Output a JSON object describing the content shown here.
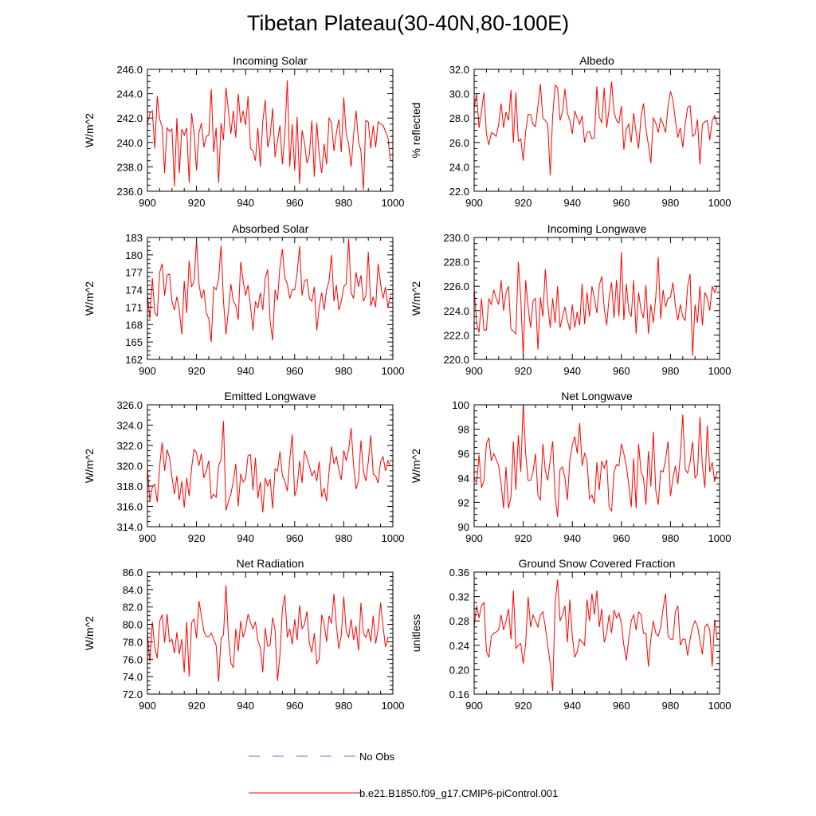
{
  "figure": {
    "title": "Tibetan Plateau(30-40N,80-100E)",
    "legend": {
      "obs_label": "No Obs",
      "obs_color": "#6a6ac8",
      "model_label": "b.e21.B1850.f09_g17.CMIP6-piControl.001",
      "model_color": "#ff0000"
    }
  },
  "chart_data": [
    {
      "type": "line",
      "title": "Incoming Solar",
      "ylabel": "W/m^2",
      "xlim": [
        900,
        1000
      ],
      "xticks": [
        900,
        920,
        940,
        960,
        980,
        1000
      ],
      "ylim": [
        236,
        246
      ],
      "yticks": [
        236,
        238,
        240,
        242,
        244,
        246
      ],
      "ydec": 1,
      "x_start": 900,
      "series_name": "b.e21.B1850.f09_g17.CMIP6-piControl.001",
      "values": [
        241.5,
        242.4,
        242.6,
        239.5,
        243.8,
        241.9,
        241.3,
        237.5,
        241.2,
        240.9,
        241.1,
        236.4,
        242.0,
        237.5,
        241.1,
        240.6,
        241.2,
        236.7,
        242.4,
        240.8,
        237.7,
        240.8,
        241.6,
        239.6,
        240.5,
        240.6,
        244.4,
        239.2,
        241.2,
        236.7,
        241.6,
        240.2,
        244.5,
        242.6,
        240.7,
        242.6,
        240.4,
        244.0,
        241.6,
        242.6,
        241.4,
        243.8,
        239.5,
        239.3,
        238.5,
        241.2,
        238.0,
        241.7,
        243.5,
        239.6,
        240.5,
        242.8,
        238.8,
        240.1,
        241.4,
        238.2,
        240.7,
        245.1,
        238.0,
        241.5,
        237.7,
        242.1,
        236.6,
        241.0,
        240.0,
        238.3,
        239.0,
        241.8,
        237.2,
        241.6,
        239.0,
        237.5,
        239.9,
        238.2,
        242.0,
        241.6,
        239.3,
        240.8,
        241.9,
        239.2,
        243.7,
        240.7,
        239.9,
        238.0,
        240.6,
        242.6,
        240.1,
        239.3,
        236.1,
        241.8,
        241.7,
        239.5,
        241.4,
        239.6,
        241.7,
        241.5,
        241.4,
        240.9,
        240.4,
        238.5
      ]
    },
    {
      "type": "line",
      "title": "Albedo",
      "ylabel": "% reflected",
      "xlim": [
        900,
        1000
      ],
      "xticks": [
        900,
        920,
        940,
        960,
        980,
        1000
      ],
      "ylim": [
        22,
        32
      ],
      "yticks": [
        22,
        24,
        26,
        28,
        30,
        32
      ],
      "ydec": 1,
      "x_start": 900,
      "series_name": "b.e21.B1850.f09_g17.CMIP6-piControl.001",
      "values": [
        28.8,
        30.0,
        27.2,
        28.6,
        30.1,
        26.7,
        25.8,
        26.8,
        26.7,
        26.5,
        27.5,
        29.2,
        27.2,
        28.5,
        27.8,
        30.3,
        26.0,
        30.1,
        26.1,
        26.3,
        24.5,
        26.9,
        28.3,
        28.3,
        27.5,
        27.3,
        29.0,
        30.8,
        28.0,
        27.8,
        27.5,
        23.3,
        28.2,
        30.7,
        30.5,
        27.8,
        28.5,
        30.4,
        28.4,
        27.8,
        26.7,
        28.6,
        28.0,
        27.5,
        28.2,
        26.0,
        26.8,
        26.9,
        26.3,
        26.4,
        30.6,
        28.1,
        27.6,
        30.5,
        27.2,
        28.8,
        31.0,
        28.5,
        27.8,
        27.6,
        29.0,
        25.4,
        27.1,
        27.5,
        26.0,
        28.4,
        26.8,
        25.5,
        28.1,
        29.2,
        27.1,
        25.8,
        24.3,
        28.0,
        27.6,
        26.8,
        28.0,
        27.5,
        26.8,
        29.0,
        30.2,
        29.5,
        27.8,
        26.4,
        27.2,
        25.6,
        27.5,
        28.9,
        29.0,
        26.5,
        26.7,
        27.9,
        24.2,
        27.5,
        27.7,
        27.8,
        26.2,
        27.8,
        28.2,
        27.5
      ]
    },
    {
      "type": "line",
      "title": "Absorbed Solar",
      "ylabel": "W/m^2",
      "xlim": [
        900,
        1000
      ],
      "xticks": [
        900,
        920,
        940,
        960,
        980,
        1000
      ],
      "ylim": [
        162,
        183
      ],
      "yticks": [
        162,
        165,
        168,
        171,
        174,
        177,
        180,
        183
      ],
      "ydec": 0,
      "x_start": 900,
      "series_name": "b.e21.B1850.f09_g17.CMIP6-piControl.001",
      "values": [
        173.2,
        169.0,
        176.0,
        170.0,
        169.5,
        177.0,
        178.5,
        173.0,
        176.5,
        176.7,
        172.0,
        170.5,
        172.8,
        170.5,
        166.3,
        175.5,
        170.0,
        179.0,
        174.5,
        175.5,
        182.5,
        175.0,
        172.5,
        174.0,
        170.0,
        169.0,
        165.0,
        174.5,
        174.0,
        175.8,
        181.6,
        172.0,
        166.3,
        170.5,
        175.0,
        172.0,
        171.3,
        168.8,
        178.8,
        175.5,
        173.0,
        174.8,
        171.2,
        167.0,
        172.0,
        170.8,
        173.5,
        170.5,
        176.0,
        177.5,
        168.5,
        165.3,
        174.0,
        172.2,
        178.0,
        181.0,
        176.0,
        175.0,
        172.5,
        174.0,
        174.0,
        176.8,
        181.5,
        173.0,
        175.5,
        175.8,
        172.5,
        172.0,
        174.5,
        167.0,
        171.0,
        173.5,
        170.5,
        174.0,
        175.5,
        180.0,
        172.0,
        174.8,
        170.5,
        172.0,
        174.5,
        175.0,
        182.8,
        173.5,
        172.5,
        177.0,
        174.5,
        176.5,
        172.0,
        173.0,
        180.5,
        171.2,
        172.8,
        171.0,
        178.5,
        175.0,
        172.5,
        174.5,
        171.0,
        173.0
      ]
    },
    {
      "type": "line",
      "title": "Incoming Longwave",
      "ylabel": "W/m^2",
      "xlim": [
        900,
        1000
      ],
      "xticks": [
        900,
        920,
        940,
        960,
        980,
        1000
      ],
      "ylim": [
        220,
        230
      ],
      "yticks": [
        220,
        222,
        224,
        226,
        228,
        230
      ],
      "ydec": 1,
      "x_start": 900,
      "series_name": "b.e21.B1850.f09_g17.CMIP6-piControl.001",
      "values": [
        225.8,
        223.0,
        222.2,
        225.0,
        222.4,
        222.4,
        225.0,
        224.5,
        225.7,
        225.0,
        224.5,
        226.5,
        224.0,
        225.5,
        226.0,
        222.5,
        222.3,
        222.1,
        228.0,
        225.0,
        220.2,
        226.5,
        224.3,
        222.6,
        224.8,
        225.0,
        220.8,
        225.1,
        223.5,
        227.4,
        224.5,
        222.6,
        225.0,
        223.0,
        226.0,
        222.6,
        223.5,
        224.3,
        223.2,
        222.4,
        224.5,
        222.6,
        223.9,
        222.8,
        226.2,
        222.9,
        225.5,
        223.5,
        226.0,
        225.0,
        223.8,
        226.1,
        226.8,
        224.2,
        222.8,
        225.1,
        226.3,
        223.4,
        226.5,
        223.5,
        228.8,
        223.2,
        226.2,
        224.0,
        223.5,
        226.5,
        222.1,
        225.5,
        224.0,
        223.4,
        226.1,
        222.1,
        224.5,
        223.0,
        225.1,
        228.4,
        223.3,
        225.7,
        224.3,
        225.0,
        225.1,
        226.3,
        224.4,
        223.2,
        224.5,
        223.5,
        223.2,
        226.0,
        227.0,
        220.3,
        224.5,
        223.0,
        226.0,
        222.8,
        225.5,
        225.0,
        224.0,
        226.0,
        225.5,
        226.0
      ]
    },
    {
      "type": "line",
      "title": "Emitted Longwave",
      "ylabel": "W/m^2",
      "xlim": [
        900,
        1000
      ],
      "xticks": [
        900,
        920,
        940,
        960,
        980,
        1000
      ],
      "ylim": [
        314,
        326
      ],
      "yticks": [
        314,
        316,
        318,
        320,
        322,
        324,
        326
      ],
      "ydec": 1,
      "x_start": 900,
      "series_name": "b.e21.B1850.f09_g17.CMIP6-piControl.001",
      "values": [
        319.8,
        316.5,
        317.9,
        318.2,
        316.4,
        320.0,
        322.3,
        319.5,
        321.6,
        320.8,
        318.9,
        317.2,
        319.0,
        316.6,
        318.5,
        315.9,
        318.8,
        317.0,
        319.8,
        321.6,
        321.3,
        320.0,
        321.2,
        318.8,
        319.5,
        320.5,
        316.8,
        317.2,
        316.9,
        320.0,
        320.6,
        324.4,
        315.6,
        316.5,
        317.2,
        318.5,
        320.2,
        316.0,
        319.2,
        318.4,
        318.7,
        321.0,
        321.1,
        317.6,
        320.8,
        316.8,
        318.4,
        315.4,
        318.8,
        318.0,
        318.7,
        315.8,
        319.7,
        319.5,
        321.4,
        319.0,
        318.5,
        317.5,
        320.6,
        323.1,
        317.0,
        317.9,
        320.5,
        318.3,
        321.5,
        320.8,
        320.0,
        319.0,
        319.5,
        318.5,
        320.4,
        316.9,
        317.8,
        316.5,
        319.4,
        321.9,
        320.2,
        320.9,
        319.6,
        318.6,
        321.5,
        320.5,
        321.6,
        323.7,
        320.0,
        317.7,
        318.5,
        322.5,
        319.5,
        318.5,
        320.4,
        323.0,
        319.2,
        319.0,
        318.3,
        320.4,
        320.9,
        319.5,
        320.5,
        320.0
      ]
    },
    {
      "type": "line",
      "title": "Net Longwave",
      "ylabel": "W/m^2",
      "xlim": [
        900,
        1000
      ],
      "xticks": [
        900,
        920,
        940,
        960,
        980,
        1000
      ],
      "ylim": [
        90,
        100
      ],
      "yticks": [
        90,
        92,
        94,
        96,
        98,
        100
      ],
      "ydec": 0,
      "x_start": 900,
      "series_name": "b.e21.B1850.f09_g17.CMIP6-piControl.001",
      "values": [
        94.0,
        93.6,
        95.9,
        93.2,
        93.8,
        96.8,
        97.3,
        95.4,
        96.0,
        95.5,
        95.0,
        93.5,
        91.5,
        94.9,
        91.5,
        92.5,
        97.0,
        93.0,
        97.5,
        94.5,
        100.0,
        96.0,
        93.8,
        93.8,
        94.5,
        96.0,
        92.6,
        92.2,
        96.8,
        94.6,
        93.8,
        95.5,
        97.0,
        92.5,
        90.8,
        94.7,
        94.9,
        94.0,
        92.2,
        95.5,
        96.7,
        97.4,
        96.0,
        98.5,
        95.0,
        96.0,
        95.4,
        92.3,
        92.6,
        91.9,
        95.3,
        93.0,
        95.4,
        94.8,
        95.5,
        91.6,
        91.3,
        94.5,
        95.1,
        95.0,
        96.8,
        96.0,
        95.0,
        93.5,
        91.6,
        95.6,
        91.5,
        96.8,
        94.5,
        94.0,
        91.8,
        96.2,
        93.3,
        97.8,
        93.0,
        91.8,
        94.6,
        94.5,
        95.5,
        97.0,
        92.5,
        94.0,
        95.0,
        93.5,
        95.8,
        99.2,
        94.7,
        94.4,
        95.3,
        97.0,
        94.0,
        94.3,
        99.0,
        95.0,
        93.2,
        98.3,
        94.5,
        95.3,
        93.7,
        94.5
      ]
    },
    {
      "type": "line",
      "title": "Net Radiation",
      "ylabel": "W/m^2",
      "xlim": [
        900,
        1000
      ],
      "xticks": [
        900,
        920,
        940,
        960,
        980,
        1000
      ],
      "ylim": [
        72,
        86
      ],
      "yticks": [
        72,
        74,
        76,
        78,
        80,
        82,
        84,
        86
      ],
      "ydec": 1,
      "x_start": 900,
      "series_name": "b.e21.B1850.f09_g17.CMIP6-piControl.001",
      "values": [
        79.0,
        75.7,
        80.3,
        77.4,
        76.1,
        80.4,
        81.1,
        77.9,
        81.2,
        78.0,
        78.3,
        76.7,
        79.1,
        76.6,
        78.3,
        74.5,
        80.3,
        74.0,
        80.2,
        80.6,
        78.4,
        82.7,
        81.0,
        79.2,
        78.6,
        78.6,
        79.0,
        78.3,
        77.6,
        73.4,
        78.4,
        78.8,
        84.5,
        78.5,
        75.6,
        75.0,
        79.5,
        76.9,
        80.4,
        78.5,
        79.5,
        81.2,
        80.2,
        79.5,
        80.3,
        78.2,
        77.3,
        74.5,
        79.6,
        77.5,
        77.6,
        80.8,
        79.4,
        73.5,
        76.5,
        81.8,
        83.4,
        78.5,
        79.5,
        77.7,
        80.6,
        78.2,
        82.2,
        79.5,
        80.0,
        81.5,
        77.8,
        76.8,
        79.0,
        75.5,
        76.0,
        81.1,
        80.1,
        78.0,
        81.0,
        80.1,
        83.5,
        79.8,
        77.2,
        78.8,
        83.2,
        79.2,
        78.5,
        80.6,
        78.2,
        79.8,
        77.0,
        82.5,
        79.0,
        78.5,
        79.5,
        78.0,
        81.0,
        77.8,
        79.5,
        82.5,
        79.8,
        77.4,
        78.5,
        78.5
      ]
    },
    {
      "type": "line",
      "title": "Ground Snow Covered Fraction",
      "ylabel": "unitless",
      "xlim": [
        900,
        1000
      ],
      "xticks": [
        900,
        920,
        940,
        960,
        980,
        1000
      ],
      "ylim": [
        0.16,
        0.36
      ],
      "yticks": [
        0.16,
        0.2,
        0.24,
        0.28,
        0.32,
        0.36
      ],
      "ydec": 2,
      "x_start": 900,
      "series_name": "b.e21.B1850.f09_g17.CMIP6-piControl.001",
      "values": [
        0.27,
        0.305,
        0.285,
        0.305,
        0.31,
        0.23,
        0.22,
        0.255,
        0.26,
        0.262,
        0.265,
        0.29,
        0.265,
        0.28,
        0.3,
        0.25,
        0.33,
        0.235,
        0.24,
        0.243,
        0.21,
        0.243,
        0.32,
        0.27,
        0.29,
        0.28,
        0.27,
        0.29,
        0.295,
        0.27,
        0.24,
        0.21,
        0.165,
        0.31,
        0.348,
        0.28,
        0.29,
        0.305,
        0.245,
        0.315,
        0.255,
        0.22,
        0.23,
        0.25,
        0.245,
        0.24,
        0.315,
        0.28,
        0.325,
        0.29,
        0.33,
        0.27,
        0.3,
        0.245,
        0.26,
        0.29,
        0.26,
        0.298,
        0.285,
        0.293,
        0.275,
        0.24,
        0.215,
        0.25,
        0.28,
        0.29,
        0.265,
        0.295,
        0.29,
        0.26,
        0.26,
        0.205,
        0.25,
        0.28,
        0.26,
        0.255,
        0.27,
        0.3,
        0.325,
        0.255,
        0.25,
        0.25,
        0.295,
        0.305,
        0.24,
        0.25,
        0.25,
        0.223,
        0.25,
        0.27,
        0.28,
        0.272,
        0.248,
        0.225,
        0.27,
        0.275,
        0.265,
        0.205,
        0.282,
        0.25
      ]
    }
  ]
}
